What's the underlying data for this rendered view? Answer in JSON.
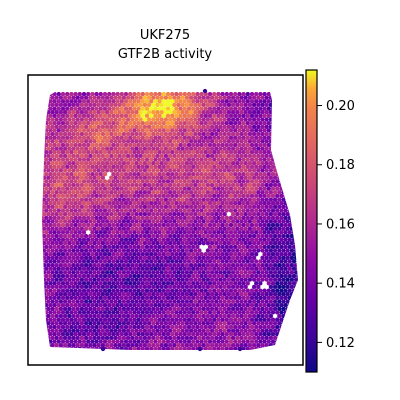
{
  "chart_data": {
    "type": "heatmap",
    "title_lines": [
      "UKF275",
      "GTF2B activity"
    ],
    "colormap": "plasma",
    "colorbar": {
      "vmin": 0.11,
      "vmax": 0.212,
      "ticks": [
        "0.12",
        "0.14",
        "0.16",
        "0.18",
        "0.20"
      ],
      "tick_values": [
        0.12,
        0.14,
        0.16,
        0.18,
        0.2
      ]
    },
    "value_regions": [
      {
        "region": "top-center",
        "activity": 0.205
      },
      {
        "region": "upper-middle",
        "activity": 0.17
      },
      {
        "region": "center",
        "activity": 0.155
      },
      {
        "region": "lower-left",
        "activity": 0.135
      },
      {
        "region": "right-edge",
        "activity": 0.13
      },
      {
        "region": "bottom",
        "activity": 0.14
      }
    ],
    "x_ticks": false,
    "y_ticks": false,
    "grid": false
  }
}
